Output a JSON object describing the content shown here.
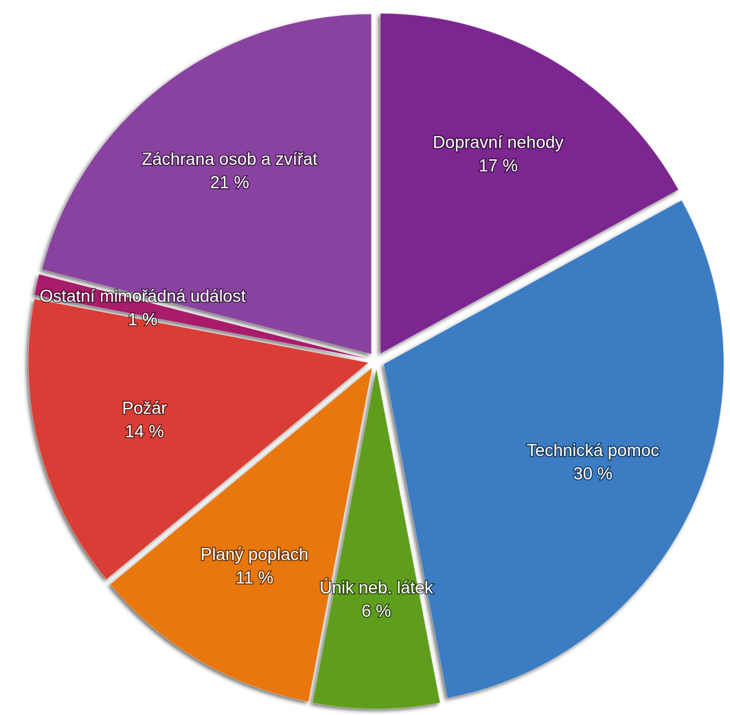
{
  "chart_data": {
    "type": "pie",
    "categories": [
      "Dopravní nehody",
      "Technická pomoc",
      "Únik neb. látek",
      "Planý poplach",
      "Požár",
      "Ostatní mimořádná událost",
      "Záchrana osob a zvířat"
    ],
    "values": [
      17,
      30,
      6,
      11,
      14,
      1,
      21
    ],
    "value_labels": [
      "17 %",
      "30 %",
      "6 %",
      "11 %",
      "14 %",
      "1 %",
      "21 %"
    ],
    "colors": [
      "#7b2890",
      "#3b7cc2",
      "#5f9e1b",
      "#e8770f",
      "#da3d35",
      "#a81f6b",
      "#8a42a0"
    ]
  }
}
